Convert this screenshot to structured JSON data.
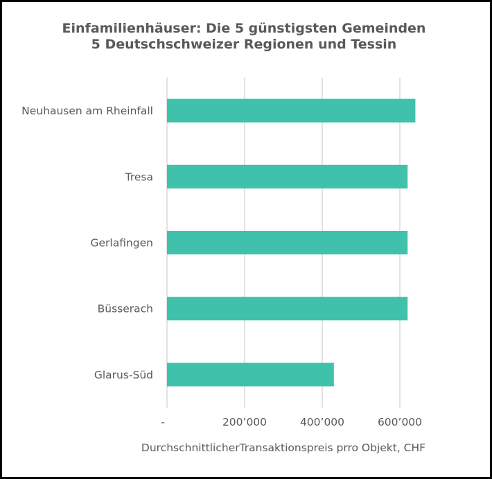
{
  "chart_data": {
    "type": "bar",
    "orientation": "horizontal",
    "title": "Einfamilienhäuser: Die 5 günstigsten Gemeinden",
    "subtitle": "5 Deutschschweizer Regionen und Tessin",
    "xlabel": "DurchschnittlicherTransaktionspreis prro Objekt, CHF",
    "ylabel": "",
    "categories": [
      "Neuhausen am Rheinfall",
      "Tresa",
      "Gerlafingen",
      "Büsserach",
      "Glarus-Süd"
    ],
    "values": [
      640000,
      620000,
      620000,
      620000,
      430000
    ],
    "xlim": [
      0,
      700000
    ],
    "xticks": [
      0,
      200000,
      400000,
      600000
    ],
    "xtick_labels": [
      "-",
      "200’000",
      "400’000",
      "600’000"
    ],
    "bar_color": "#40C1AC",
    "grid": true,
    "legend": "none"
  }
}
